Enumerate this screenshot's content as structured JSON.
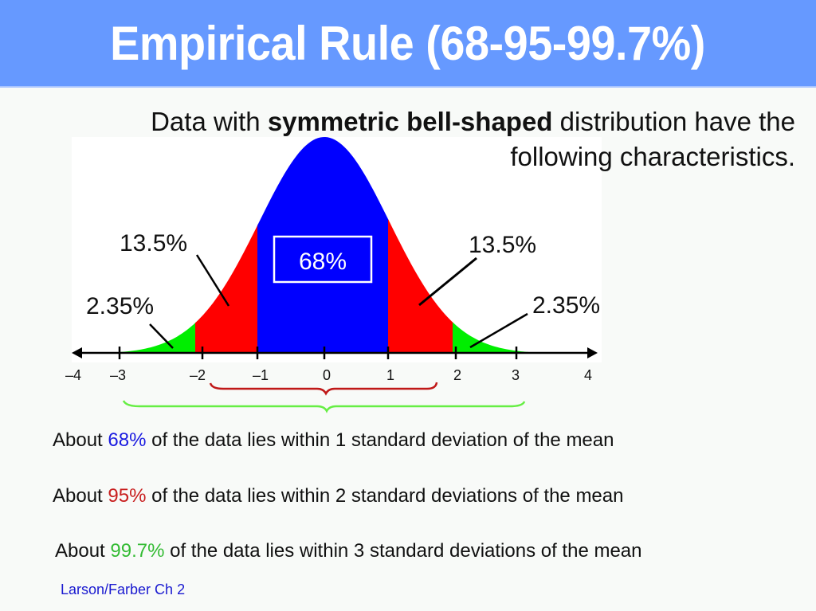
{
  "title": "Empirical Rule (68-95-99.7%)",
  "intro": {
    "part1": "Data with ",
    "bold": "symmetric bell-shaped",
    "part2": " distribution have the",
    "line2": "following characteristics."
  },
  "colors": {
    "header": "#6699ff",
    "within_1sd": "#0000ff",
    "within_2sd": "#ff0000",
    "within_3sd": "#00ee00",
    "bracket_2sd": "#c01818",
    "bracket_3sd": "#66ee44",
    "pct_68": "#1a1ae0",
    "pct_95": "#c81e1e",
    "pct_997": "#33bb33",
    "footer": "#1a1ad0"
  },
  "statements": [
    {
      "prefix": "About ",
      "pct": "68%",
      "suffix": " of the data lies within 1 standard deviation of the mean"
    },
    {
      "prefix": "About ",
      "pct": "95%",
      "suffix": " of the data lies within 2 standard deviations of the mean"
    },
    {
      "prefix": "About ",
      "pct": "99.7%",
      "suffix": " of the data lies within 3 standard deviations of the mean"
    }
  ],
  "footer": "Larson/Farber Ch 2",
  "chart_data": {
    "type": "area",
    "title": "Normal distribution - Empirical Rule",
    "x_ticks": [
      "–4",
      "–3",
      "–2",
      "–1",
      "0",
      "1",
      "2",
      "3",
      "4"
    ],
    "xlim": [
      -4,
      4
    ],
    "regions": [
      {
        "from": -3,
        "to": -2,
        "label": "2.35%",
        "color": "green",
        "value": 2.35
      },
      {
        "from": -2,
        "to": -1,
        "label": "13.5%",
        "color": "red",
        "value": 13.5
      },
      {
        "from": -1,
        "to": 1,
        "label": "68%",
        "color": "blue",
        "value": 68
      },
      {
        "from": 1,
        "to": 2,
        "label": "13.5%",
        "color": "red",
        "value": 13.5
      },
      {
        "from": 2,
        "to": 3,
        "label": "2.35%",
        "color": "green",
        "value": 2.35
      }
    ],
    "brackets": [
      {
        "from": -2,
        "to": 2,
        "color": "red",
        "meaning": "95%"
      },
      {
        "from": -3,
        "to": 3,
        "color": "green",
        "meaning": "99.7%"
      }
    ],
    "labels": {
      "center": "68%",
      "left_inner": "13.5%",
      "right_inner": "13.5%",
      "left_outer": "2.35%",
      "right_outer": "2.35%"
    },
    "grid": false,
    "legend": "none"
  }
}
